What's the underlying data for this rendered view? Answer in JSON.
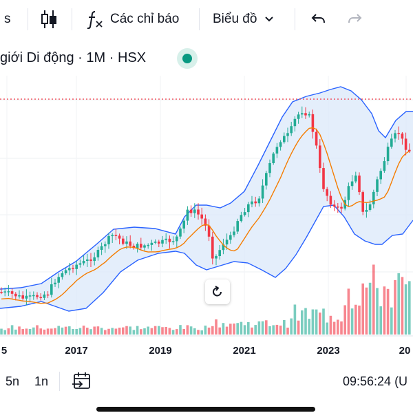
{
  "toolbar": {
    "partial_left": "s",
    "indicators_label": "Các chỉ báo",
    "chart_type_label": "Biểu đồ"
  },
  "symbol": {
    "title": "giới Di động · 1M · HSX",
    "status_color": "#089981"
  },
  "colors": {
    "up": "#22ab94",
    "down": "#f23645",
    "band_line": "#2962ff",
    "band_fill": "#dbe8fa",
    "ma_line": "#f57c00",
    "price_line": "#f23645"
  },
  "chart_data": {
    "type": "candlestick",
    "x_axis_labels": [
      "5",
      "2017",
      "2019",
      "2021",
      "2023",
      "20"
    ],
    "visible_range": [
      "2015",
      "2024"
    ],
    "indicators": [
      "Bollinger Bands"
    ],
    "grid": true
  },
  "bottom": {
    "range_5y": "5n",
    "range_1y": "1n",
    "clock": "09:56:24 (U"
  }
}
